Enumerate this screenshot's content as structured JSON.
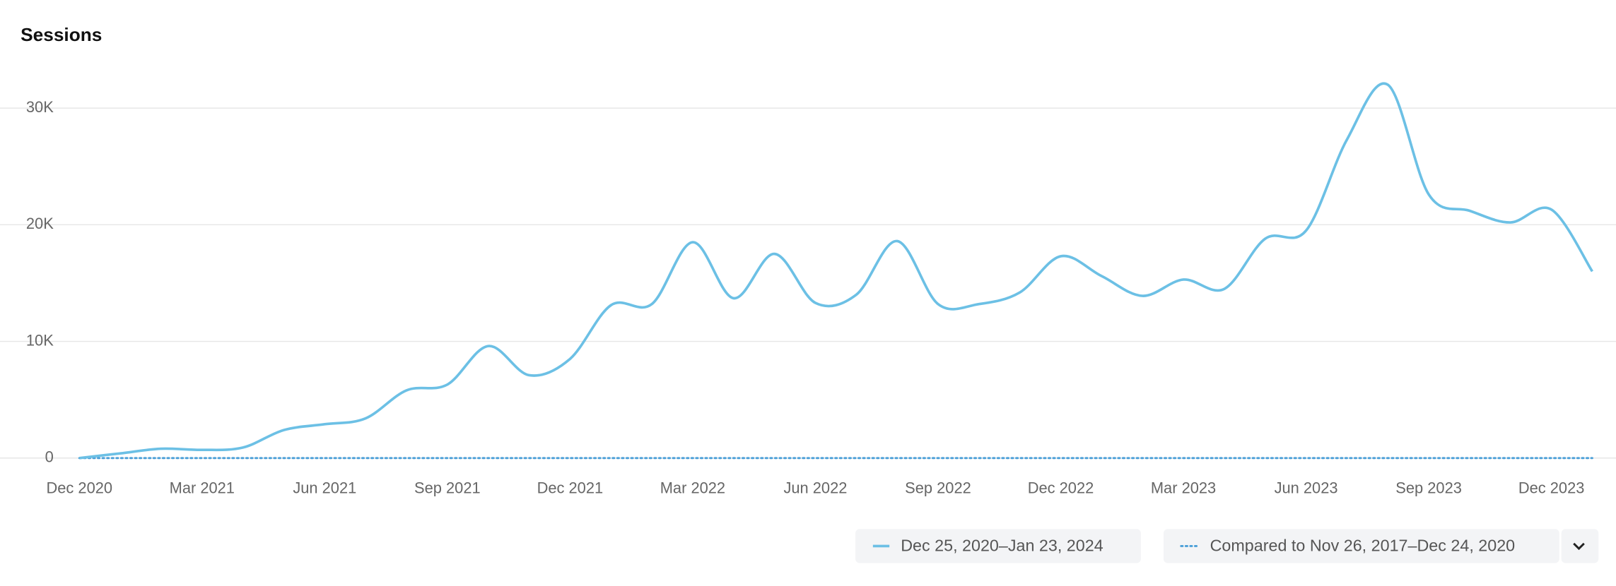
{
  "chart_data": {
    "type": "line",
    "title": "Sessions",
    "categories": [
      "Dec 2020",
      null,
      null,
      "Mar 2021",
      null,
      null,
      "Jun 2021",
      null,
      null,
      "Sep 2021",
      null,
      null,
      "Dec 2021",
      null,
      null,
      "Mar 2022",
      null,
      null,
      "Jun 2022",
      null,
      null,
      "Sep 2022",
      null,
      null,
      "Dec 2022",
      null,
      null,
      "Mar 2023",
      null,
      null,
      "Jun 2023",
      null,
      null,
      "Sep 2023",
      null,
      null,
      "Dec 2023",
      null
    ],
    "series": [
      {
        "name": "Dec 25, 2020–Jan 23, 2024",
        "color": "#6cc0e5",
        "style": "solid",
        "values": [
          0,
          400,
          800,
          700,
          900,
          2400,
          2900,
          3400,
          5800,
          6300,
          9600,
          7100,
          8500,
          13100,
          13200,
          18500,
          13700,
          17500,
          13300,
          14000,
          18600,
          13200,
          13200,
          14200,
          17300,
          15600,
          13900,
          15300,
          14500,
          18800,
          19500,
          27300,
          32000,
          22600,
          21200,
          20200,
          21300,
          16000
        ]
      },
      {
        "name": "Compared to Nov 26, 2017–Dec 24, 2020",
        "color": "#4a9fd8",
        "style": "dotted",
        "values": [
          0,
          0,
          0,
          0,
          0,
          0,
          0,
          0,
          0,
          0,
          0,
          0,
          0,
          0,
          0,
          0,
          0,
          0,
          0,
          0,
          0,
          0,
          0,
          0,
          0,
          0,
          0,
          0,
          0,
          0,
          0,
          0,
          0,
          0,
          0,
          0,
          0,
          0
        ]
      }
    ],
    "ylim": [
      0,
      30000
    ],
    "yticks": [
      0,
      {
        "value": 10000,
        "label": "10K"
      },
      {
        "value": 20000,
        "label": "20K"
      },
      {
        "value": 30000,
        "label": "30K"
      }
    ],
    "grid": true
  }
}
